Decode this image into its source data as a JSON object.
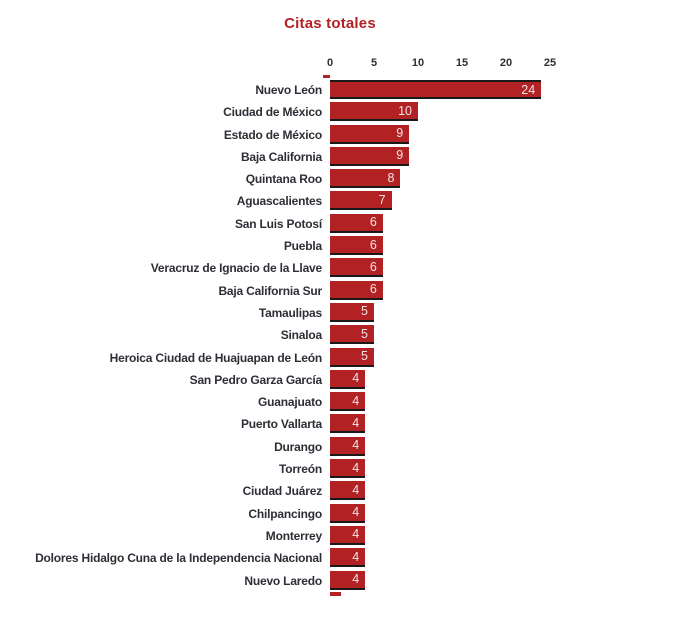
{
  "title": "Citas totales",
  "colors": {
    "bar": "#b22225",
    "title": "#b22225",
    "axis_text": "#2e2e36",
    "value_text": "#f2e4e2",
    "bar_baseline": "#191919",
    "background": "#ffffff"
  },
  "chart_data": {
    "type": "bar",
    "orientation": "horizontal",
    "title": "Citas totales",
    "xlabel": "",
    "ylabel": "",
    "xlim": [
      0,
      25
    ],
    "x_ticks": [
      0,
      5,
      10,
      15,
      20,
      25
    ],
    "grid": false,
    "legend": "none",
    "value_labels": "inside-end",
    "categories": [
      "Nuevo León",
      "Ciudad de México",
      "Estado de México",
      "Baja California",
      "Quintana Roo",
      "Aguascalientes",
      "San Luis Potosí",
      "Puebla",
      "Veracruz de Ignacio de la Llave",
      "Baja California Sur",
      "Tamaulipas",
      "Sinaloa",
      "Heroica Ciudad de Huajuapan de León",
      "San Pedro Garza García",
      "Guanajuato",
      "Puerto Vallarta",
      "Durango",
      "Torreón",
      "Ciudad Juárez",
      "Chilpancingo",
      "Monterrey",
      "Dolores Hidalgo Cuna de la Independencia Nacional",
      "Nuevo Laredo"
    ],
    "values": [
      24,
      10,
      9,
      9,
      8,
      7,
      6,
      6,
      6,
      6,
      5,
      5,
      5,
      4,
      4,
      4,
      4,
      4,
      4,
      4,
      4,
      4,
      4
    ]
  }
}
